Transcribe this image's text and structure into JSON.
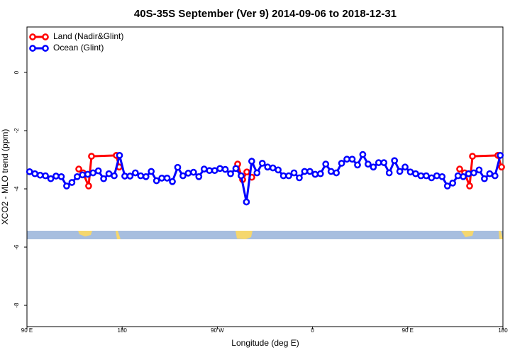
{
  "chart_data": {
    "type": "line",
    "title": "40S-35S September (Ver 9)   2014-09-06 to 2018-12-31",
    "x_label": "Longitude (deg E)",
    "y_label": "XCO2 - MLO trend (ppm)",
    "xlim": [
      90,
      540
    ],
    "ylim": [
      -8.73,
      1.56
    ],
    "xticks": [
      {
        "value": 90,
        "label": "90 E"
      },
      180,
      {
        "value": 270,
        "label": "90 W"
      },
      {
        "value": 360,
        "label": "0"
      },
      {
        "value": 450,
        "label": "90 E"
      },
      {
        "value": 540,
        "label": "180"
      }
    ],
    "yticks": [
      0,
      -2,
      -4,
      -6,
      -8
    ],
    "legend": "top-left",
    "series": [
      {
        "name": "Land (Nadir&Glint)",
        "color": "#ff0000",
        "x": [
          139.0,
          143.0,
          148.3,
          151.0,
          174.5,
          177.2,
          260,
          289.2,
          293.9,
          297.9,
          302.6,
          400,
          499.1,
          503.8,
          508.5,
          511.2,
          535.3,
          538.7
        ],
        "values": [
          -3.32,
          -3.45,
          -3.9,
          -2.88,
          -2.85,
          -3.25,
          null,
          -3.15,
          -3.68,
          -3.42,
          -3.6,
          null,
          -3.32,
          -3.45,
          -3.9,
          -2.88,
          -2.85,
          -3.25
        ]
      },
      {
        "name": "Ocean (Glint)",
        "color": "#0000ff",
        "x": [
          92.5,
          97.5,
          102.5,
          107.5,
          112.5,
          117.5,
          122.5,
          127.5,
          132.5,
          137.5,
          142.5,
          147.5,
          152.5,
          157.5,
          162.5,
          167.5,
          172.5,
          177.5,
          182.5,
          187.5,
          192.5,
          197.5,
          202.5,
          207.5,
          212.5,
          217.5,
          222.5,
          227.5,
          232.5,
          237.5,
          242.5,
          247.5,
          252.5,
          257.5,
          262.5,
          267.5,
          272.5,
          277.5,
          282.5,
          287.5,
          292.5,
          297.5,
          302.5,
          307.5,
          312.5,
          317.5,
          322.5,
          327.5,
          332.5,
          337.5,
          342.5,
          347.5,
          352.5,
          357.5,
          362.5,
          367.5,
          372.5,
          377.5,
          382.5,
          387.5,
          392.5,
          397.5,
          402.5,
          407.5,
          412.5,
          417.5,
          422.5,
          427.5,
          432.5,
          437.5,
          442.5,
          447.5,
          452.5,
          457.5,
          462.5,
          467.5,
          472.5,
          477.5,
          482.5,
          487.5,
          492.5,
          497.5,
          502.5,
          507.5,
          512.5,
          517.5,
          522.5,
          527.5,
          532.5,
          537.5
        ],
        "values": [
          -3.41,
          -3.48,
          -3.53,
          -3.55,
          -3.65,
          -3.56,
          -3.58,
          -3.9,
          -3.78,
          -3.58,
          -3.52,
          -3.5,
          -3.45,
          -3.38,
          -3.65,
          -3.48,
          -3.55,
          -2.85,
          -3.56,
          -3.56,
          -3.45,
          -3.55,
          -3.58,
          -3.4,
          -3.72,
          -3.63,
          -3.63,
          -3.75,
          -3.26,
          -3.55,
          -3.46,
          -3.43,
          -3.58,
          -3.32,
          -3.37,
          -3.37,
          -3.3,
          -3.33,
          -3.48,
          -3.3,
          -3.55,
          -4.45,
          -3.05,
          -3.45,
          -3.12,
          -3.25,
          -3.28,
          -3.35,
          -3.55,
          -3.55,
          -3.45,
          -3.62,
          -3.4,
          -3.4,
          -3.5,
          -3.48,
          -3.15,
          -3.4,
          -3.45,
          -3.12,
          -2.98,
          -2.98,
          -3.18,
          -2.82,
          -3.15,
          -3.25,
          -3.1,
          -3.1,
          -3.45,
          -3.03,
          -3.4,
          -3.25,
          -3.42,
          -3.48,
          -3.55,
          -3.55,
          -3.62,
          -3.55,
          -3.58,
          -3.9,
          -3.8,
          -3.55,
          -3.58,
          -3.48,
          -3.45,
          -3.35,
          -3.65,
          -3.48,
          -3.55,
          -2.85
        ]
      }
    ]
  }
}
